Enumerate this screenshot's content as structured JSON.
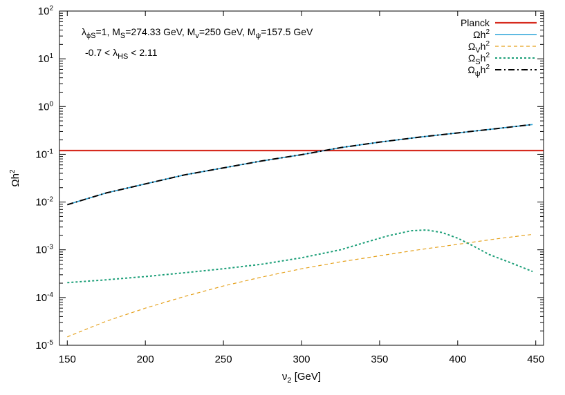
{
  "chart_data": {
    "type": "line",
    "xlabel": "ν2 [GeV]",
    "xlabel_main": "ν",
    "xlabel_sub": "2",
    "xlabel_rest": " [GeV]",
    "ylabel": "Ωh2",
    "ylabel_main": "Ωh",
    "ylabel_sup": "2",
    "xlim": [
      145,
      455
    ],
    "ylim": [
      1e-05,
      100
    ],
    "yscale": "log",
    "grid": false,
    "legend_position": "top-right",
    "x_ticks": [
      150,
      200,
      250,
      300,
      350,
      400,
      450
    ],
    "x_tick_labels": [
      "150",
      "200",
      "250",
      "300",
      "350",
      "400",
      "450"
    ],
    "y_ticks": [
      {
        "value": 1e-05,
        "base": "10",
        "exp": "-5"
      },
      {
        "value": 0.0001,
        "base": "10",
        "exp": "-4"
      },
      {
        "value": 0.001,
        "base": "10",
        "exp": "-3"
      },
      {
        "value": 0.01,
        "base": "10",
        "exp": "-2"
      },
      {
        "value": 0.1,
        "base": "10",
        "exp": "-1"
      },
      {
        "value": 1,
        "base": "10",
        "exp": "0"
      },
      {
        "value": 10,
        "base": "10",
        "exp": "1"
      },
      {
        "value": 100,
        "base": "10",
        "exp": "2"
      }
    ],
    "annotations": [
      {
        "parts": [
          {
            "t": "λ"
          },
          {
            "t": "ϕS",
            "sub": true
          },
          {
            "t": "=1, M"
          },
          {
            "t": "S",
            "sub": true
          },
          {
            "t": "=274.33 GeV, M"
          },
          {
            "t": "v",
            "sub": true
          },
          {
            "t": "=250 GeV, M"
          },
          {
            "t": "ψ",
            "sub": true
          },
          {
            "t": "=157.5 GeV"
          }
        ]
      },
      {
        "parts": [
          {
            "t": "-0.7 < λ"
          },
          {
            "t": "HS",
            "sub": true
          },
          {
            "t": " < 2.11"
          }
        ]
      }
    ],
    "series": [
      {
        "key": "planck",
        "legend": [
          {
            "t": "Planck"
          }
        ],
        "color": "#d62a1e",
        "style": "solid",
        "x": [
          145,
          455
        ],
        "y": [
          0.12,
          0.12
        ]
      },
      {
        "key": "total",
        "legend": [
          {
            "t": "Ωh"
          },
          {
            "t": "2",
            "sup": true
          }
        ],
        "color": "#2aa3d8",
        "style": "solid",
        "x": [
          150,
          175,
          200,
          225,
          250,
          275,
          300,
          325,
          350,
          375,
          400,
          425,
          448
        ],
        "y": [
          0.0088,
          0.0155,
          0.024,
          0.037,
          0.052,
          0.073,
          0.098,
          0.138,
          0.18,
          0.228,
          0.28,
          0.345,
          0.42
        ]
      },
      {
        "key": "vector",
        "legend": [
          {
            "t": "Ω"
          },
          {
            "t": "V",
            "sub": true
          },
          {
            "t": "h"
          },
          {
            "t": "2",
            "sup": true
          }
        ],
        "color": "#e5a11c",
        "style": "dashed",
        "x": [
          150,
          175,
          200,
          225,
          250,
          275,
          300,
          325,
          350,
          375,
          400,
          425,
          448
        ],
        "y": [
          1.5e-05,
          3.2e-05,
          6e-05,
          0.000105,
          0.000175,
          0.00027,
          0.0004,
          0.00056,
          0.00075,
          0.001,
          0.0013,
          0.0017,
          0.0021
        ]
      },
      {
        "key": "scalar",
        "legend": [
          {
            "t": "Ω"
          },
          {
            "t": "S",
            "sub": true
          },
          {
            "t": "h"
          },
          {
            "t": "2",
            "sup": true
          }
        ],
        "color": "#1a9e77",
        "style": "dotted",
        "x": [
          150,
          175,
          200,
          225,
          250,
          275,
          300,
          325,
          340,
          355,
          370,
          380,
          390,
          400,
          410,
          420,
          435,
          448
        ],
        "y": [
          0.000205,
          0.000235,
          0.000275,
          0.00033,
          0.0004,
          0.0005,
          0.00068,
          0.001,
          0.0014,
          0.00195,
          0.0025,
          0.0026,
          0.0023,
          0.00175,
          0.0012,
          0.0008,
          0.00052,
          0.00035
        ]
      },
      {
        "key": "fermion",
        "legend": [
          {
            "t": "Ω"
          },
          {
            "t": "ψ",
            "sub": true
          },
          {
            "t": "h"
          },
          {
            "t": "2",
            "sup": true
          }
        ],
        "color": "#000000",
        "style": "dashdot",
        "x": [
          150,
          175,
          200,
          225,
          250,
          275,
          300,
          325,
          350,
          375,
          400,
          425,
          448
        ],
        "y": [
          0.0088,
          0.0155,
          0.024,
          0.037,
          0.052,
          0.073,
          0.098,
          0.138,
          0.18,
          0.228,
          0.28,
          0.345,
          0.42
        ]
      }
    ]
  }
}
